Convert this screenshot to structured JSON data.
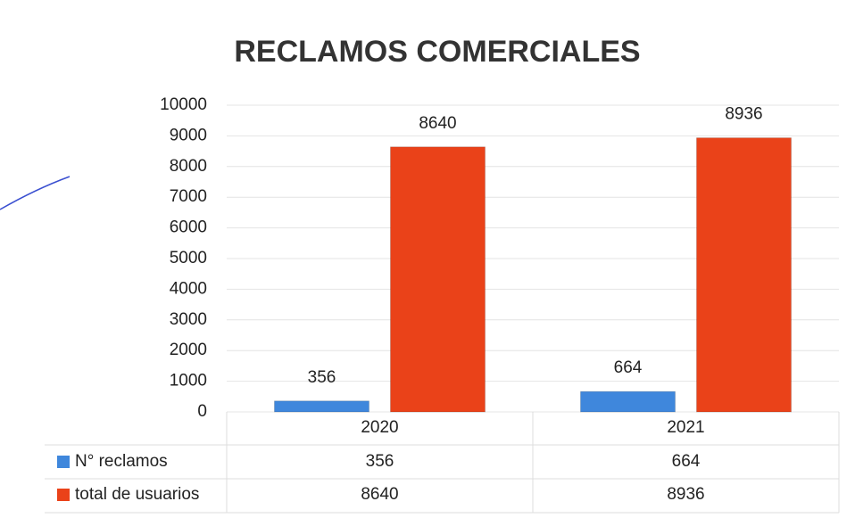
{
  "chart_data": {
    "type": "bar",
    "title": "RECLAMOS COMERCIALES",
    "categories": [
      "2020",
      "2021"
    ],
    "series": [
      {
        "name": "N° reclamos",
        "color": "#3f87dc",
        "values": [
          356,
          664
        ]
      },
      {
        "name": "total de usuarios",
        "color": "#ea4219",
        "values": [
          8640,
          8936
        ]
      }
    ],
    "ylim": [
      0,
      10000
    ],
    "yticks": [
      0,
      1000,
      2000,
      3000,
      4000,
      5000,
      6000,
      7000,
      8000,
      9000,
      10000
    ],
    "grid": true,
    "data_table": true
  }
}
